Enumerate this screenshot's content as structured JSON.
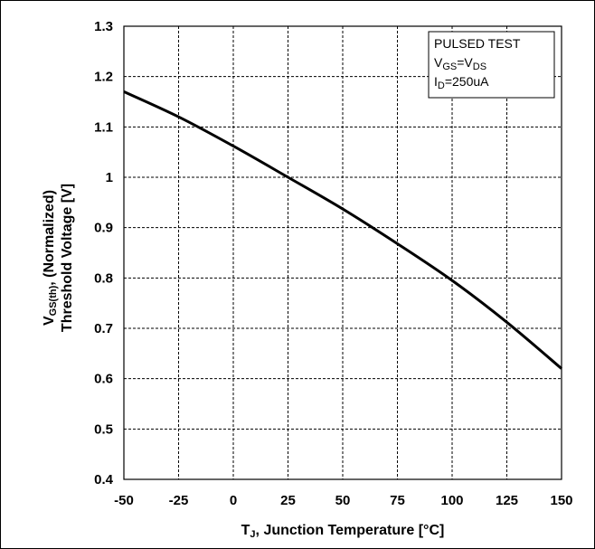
{
  "chart_data": {
    "type": "line",
    "title": "",
    "xlabel": {
      "main": "T",
      "sub": "J",
      "rest": ", Junction Temperature [°C]"
    },
    "ylabel": {
      "line1_main": "V",
      "line1_sub": "GS(th)",
      "line1_rest": ", (Normalized)",
      "line2": "Threshold Voltage [V]"
    },
    "xlim": [
      -50,
      150
    ],
    "ylim": [
      0.4,
      1.3
    ],
    "x_ticks": [
      -50,
      -25,
      0,
      25,
      50,
      75,
      100,
      125,
      150
    ],
    "y_ticks": [
      1.3,
      1.2,
      1.1,
      1,
      0.9,
      0.8,
      0.7,
      0.6,
      0.5,
      0.4
    ],
    "x_tick_labels": [
      "-50",
      "-25",
      "0",
      "25",
      "50",
      "75",
      "100",
      "125",
      "150"
    ],
    "y_tick_labels": [
      "1.3",
      "1.2",
      "1.1",
      "1",
      "0.9",
      "0.8",
      "0.7",
      "0.6",
      "0.5",
      "0.4"
    ],
    "grid": true,
    "legend": {
      "placement": "top-right",
      "line1": "PULSED TEST",
      "line2": {
        "a": "V",
        "a_sub": "GS",
        "eq": "=V",
        "b_sub": "DS"
      },
      "line3": {
        "a": "I",
        "a_sub": "D",
        "rest": "=250uA"
      }
    },
    "series": [
      {
        "x": [
          -50,
          -25,
          0,
          25,
          50,
          75,
          100,
          125,
          150
        ],
        "y": [
          1.17,
          1.12,
          1.062,
          1.0,
          0.937,
          0.868,
          0.795,
          0.712,
          0.62
        ]
      }
    ]
  }
}
